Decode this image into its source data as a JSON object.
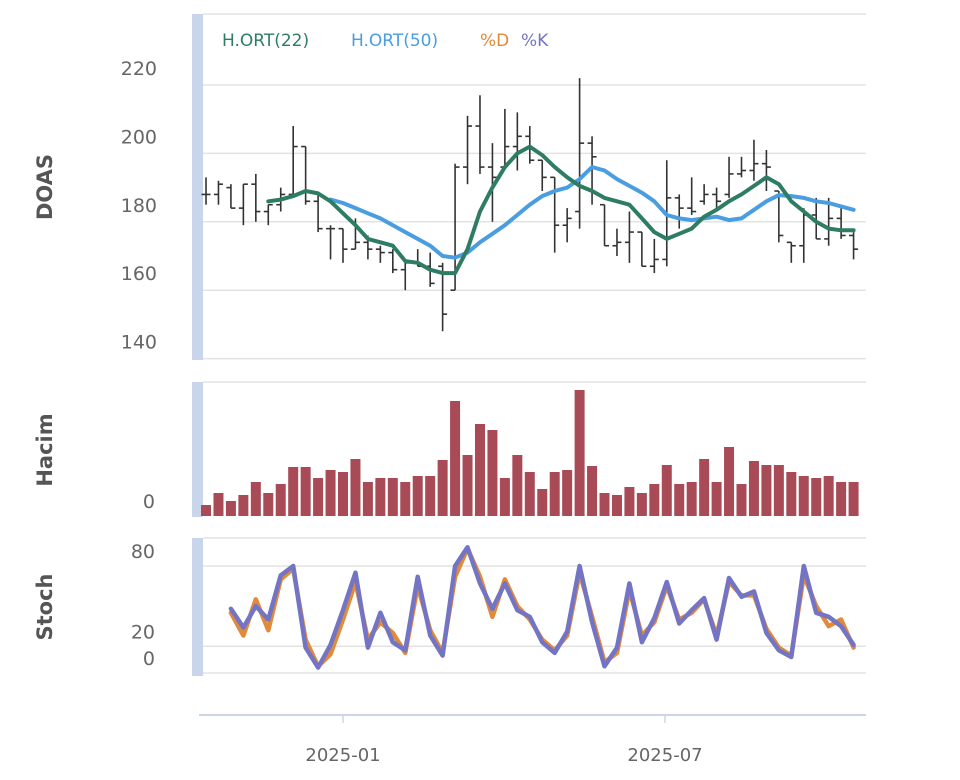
{
  "chart_data": {
    "type": "ohlc",
    "x_axis": {
      "type": "date",
      "tick_labels": [
        "2025-01",
        "2025-07"
      ],
      "ticks": [
        "2025-01-01",
        "2025-07-01"
      ]
    },
    "dates_start": "2024-10-16",
    "interval": "weekly",
    "legend": {
      "placement": "top-left",
      "entries": [
        {
          "label": "H.ORT(22)",
          "color": "#2e7d63"
        },
        {
          "label": "H.ORT(50)",
          "color": "#4a9de0"
        },
        {
          "label": "%D",
          "color": "#e08a3a"
        },
        {
          "label": "%K",
          "color": "#7474c4"
        }
      ]
    },
    "panels": {
      "price": {
        "ylabel": "DOAS",
        "ylim": [
          140,
          220
        ],
        "yticks": [
          220,
          200,
          180,
          160,
          140
        ],
        "grid": true,
        "ohlc": [
          [
            188,
            193,
            185,
            188
          ],
          [
            188,
            192,
            185,
            191
          ],
          [
            190,
            191,
            184,
            184
          ],
          [
            184,
            191,
            179,
            191
          ],
          [
            191,
            194,
            180,
            183
          ],
          [
            183,
            185,
            179,
            185
          ],
          [
            185,
            190,
            183,
            188
          ],
          [
            188,
            208,
            188,
            202
          ],
          [
            202,
            202,
            185,
            186
          ],
          [
            186,
            188,
            177,
            178
          ],
          [
            178,
            179,
            169,
            178
          ],
          [
            178,
            178,
            168,
            172
          ],
          [
            172,
            181,
            172,
            174
          ],
          [
            174,
            176,
            169,
            172
          ],
          [
            172,
            173,
            168,
            171
          ],
          [
            171,
            172,
            165,
            166
          ],
          [
            166,
            168,
            160,
            168
          ],
          [
            168,
            172,
            167,
            167
          ],
          [
            167,
            171,
            161,
            162
          ],
          [
            167,
            168,
            148,
            153
          ],
          [
            160,
            197,
            160,
            196
          ],
          [
            196,
            211,
            191,
            208
          ],
          [
            208,
            217,
            194,
            196
          ],
          [
            196,
            203,
            180,
            193
          ],
          [
            196,
            213,
            196,
            202
          ],
          [
            202,
            212,
            195,
            205
          ],
          [
            205,
            208,
            197,
            198
          ],
          [
            198,
            198,
            189,
            193
          ],
          [
            193,
            193,
            171,
            179
          ],
          [
            179,
            184,
            174,
            181
          ],
          [
            183,
            222,
            178,
            203
          ],
          [
            203,
            205,
            185,
            199
          ],
          [
            185,
            185,
            173,
            173
          ],
          [
            173,
            178,
            170,
            174
          ],
          [
            174,
            183,
            168,
            177
          ],
          [
            177,
            177,
            167,
            167
          ],
          [
            167,
            175,
            165,
            169
          ],
          [
            169,
            198,
            167,
            187
          ],
          [
            187,
            188,
            178,
            184
          ],
          [
            184,
            193,
            182,
            183
          ],
          [
            186,
            191,
            185,
            188
          ],
          [
            188,
            190,
            184,
            186
          ],
          [
            188,
            199,
            187,
            194
          ],
          [
            194,
            199,
            193,
            195
          ],
          [
            195,
            204,
            192,
            197
          ],
          [
            197,
            201,
            189,
            196
          ],
          [
            189,
            189,
            174,
            176
          ],
          [
            174,
            174,
            168,
            173
          ],
          [
            173,
            184,
            168,
            182
          ],
          [
            182,
            187,
            175,
            175
          ],
          [
            175,
            187,
            173,
            181
          ],
          [
            181,
            184,
            175,
            176
          ],
          [
            176,
            177,
            169,
            172
          ]
        ],
        "ma22": [
          null,
          null,
          null,
          null,
          null,
          186,
          186.5,
          187.5,
          189,
          188.3,
          186,
          182.5,
          179,
          175,
          174,
          173,
          168.5,
          168,
          166,
          165,
          165,
          172,
          183,
          190,
          196,
          200,
          202,
          199.5,
          196,
          193,
          190.5,
          189,
          187,
          186,
          185,
          181,
          177,
          175,
          176.5,
          178,
          181.5,
          183.5,
          186,
          188,
          190.5,
          193,
          191,
          186,
          183,
          180,
          178,
          177.5,
          177.5
        ],
        "ma50": [
          null,
          null,
          null,
          null,
          null,
          null,
          null,
          null,
          null,
          null,
          186.5,
          185.5,
          184,
          182.5,
          181,
          179,
          177,
          175,
          173,
          170,
          169.5,
          171,
          174,
          176.5,
          179,
          182,
          185,
          187.5,
          189,
          190,
          192.5,
          196,
          195,
          192.5,
          190.5,
          188.5,
          186,
          182,
          181,
          180.5,
          181,
          181.5,
          180.5,
          181,
          183.5,
          186,
          187.8,
          187.5,
          187,
          186,
          185.5,
          184.5,
          183.5
        ]
      },
      "volume": {
        "ylabel": "Hacim",
        "yticks": [
          0
        ],
        "color": "#a84b57",
        "values": [
          11,
          23,
          15,
          21,
          34,
          23,
          32,
          49,
          49,
          38,
          46,
          44,
          57,
          34,
          38,
          38,
          34,
          40,
          40,
          56,
          115,
          61,
          92,
          86,
          38,
          61,
          44,
          27,
          44,
          46,
          126,
          50,
          23,
          21,
          29,
          23,
          32,
          51,
          32,
          34,
          57,
          34,
          69,
          32,
          55,
          51,
          51,
          44,
          40,
          38,
          40,
          34,
          34
        ]
      },
      "stoch": {
        "ylabel": "Stoch",
        "yticks": [
          80,
          20,
          0
        ],
        "k": [
          null,
          null,
          48,
          34,
          50,
          40,
          73,
          80,
          19,
          4,
          21,
          47,
          75,
          19,
          45,
          23,
          17,
          72,
          28,
          13,
          80,
          94,
          67,
          48,
          67,
          47,
          42,
          23,
          15,
          31,
          80,
          38,
          5,
          19,
          67,
          23,
          41,
          68,
          37,
          47,
          56,
          25,
          71,
          57,
          61,
          30,
          17,
          12,
          80,
          45,
          42,
          35,
          21
        ],
        "d": [
          null,
          null,
          45,
          28,
          55,
          32,
          70,
          78,
          25,
          5,
          14,
          40,
          68,
          25,
          38,
          30,
          15,
          65,
          32,
          15,
          72,
          93,
          72,
          42,
          70,
          50,
          40,
          25,
          17,
          28,
          75,
          42,
          8,
          15,
          62,
          28,
          38,
          65,
          40,
          45,
          55,
          28,
          68,
          58,
          58,
          33,
          19,
          13,
          73,
          50,
          35,
          40,
          19
        ]
      }
    }
  }
}
